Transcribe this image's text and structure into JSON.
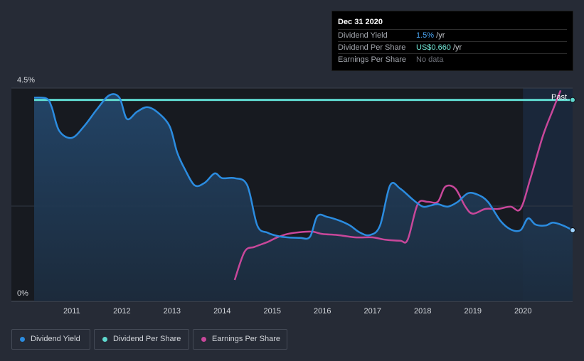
{
  "tooltip": {
    "date": "Dec 31 2020",
    "rows": [
      {
        "label": "Dividend Yield",
        "value": "1.5%",
        "unit": " /yr"
      },
      {
        "label": "Dividend Per Share",
        "value": "US$0.660",
        "unit": " /yr"
      },
      {
        "label": "Earnings Per Share",
        "value": "No data",
        "unit": ""
      }
    ]
  },
  "legend": [
    {
      "label": "Dividend Yield",
      "color": "#2b8ce0"
    },
    {
      "label": "Dividend Per Share",
      "color": "#5fd9cf"
    },
    {
      "label": "Earnings Per Share",
      "color": "#c8479a"
    }
  ],
  "chart_data": {
    "type": "line",
    "title": "",
    "xlabel": "",
    "ylabel": "",
    "xlim": [
      2010.25,
      2020.99
    ],
    "ylim": [
      0,
      4.5
    ],
    "y_tick_labels": [
      "4.5%",
      "0%"
    ],
    "x_ticks": [
      2011,
      2012,
      2013,
      2014,
      2015,
      2016,
      2017,
      2018,
      2019,
      2020
    ],
    "past_label": "Past",
    "past_region_start": 2020.0,
    "series": [
      {
        "name": "Dividend Yield",
        "color": "#2b8ce0",
        "x": [
          2010.25,
          2010.5,
          2010.6,
          2010.75,
          2011.0,
          2011.25,
          2011.5,
          2011.75,
          2011.95,
          2012.1,
          2012.3,
          2012.5,
          2012.7,
          2012.95,
          2013.1,
          2013.25,
          2013.45,
          2013.65,
          2013.85,
          2014.0,
          2014.25,
          2014.5,
          2014.7,
          2014.9,
          2015.1,
          2015.3,
          2015.55,
          2015.75,
          2015.9,
          2016.1,
          2016.35,
          2016.55,
          2016.75,
          2016.95,
          2017.15,
          2017.35,
          2017.55,
          2017.8,
          2018.0,
          2018.15,
          2018.3,
          2018.5,
          2018.7,
          2018.9,
          2019.1,
          2019.3,
          2019.55,
          2019.75,
          2019.95,
          2020.1,
          2020.25,
          2020.45,
          2020.6,
          2020.8,
          2020.99
        ],
        "values": [
          4.3,
          4.28,
          4.1,
          3.6,
          3.45,
          3.7,
          4.05,
          4.35,
          4.3,
          3.85,
          4.0,
          4.1,
          4.0,
          3.7,
          3.15,
          2.8,
          2.45,
          2.5,
          2.7,
          2.6,
          2.6,
          2.45,
          1.6,
          1.45,
          1.38,
          1.35,
          1.34,
          1.36,
          1.8,
          1.78,
          1.7,
          1.6,
          1.45,
          1.4,
          1.6,
          2.45,
          2.38,
          2.15,
          2.0,
          2.02,
          2.05,
          2.0,
          2.1,
          2.28,
          2.25,
          2.1,
          1.7,
          1.52,
          1.5,
          1.75,
          1.62,
          1.6,
          1.66,
          1.6,
          1.5
        ]
      },
      {
        "name": "Dividend Per Share",
        "color": "#5fd9cf",
        "x": [
          2010.25,
          2020.99
        ],
        "values": [
          4.25,
          4.25
        ]
      },
      {
        "name": "Earnings Per Share",
        "color": "#c8479a",
        "x": [
          2014.25,
          2014.45,
          2014.65,
          2014.9,
          2015.1,
          2015.3,
          2015.55,
          2015.8,
          2016.0,
          2016.3,
          2016.65,
          2017.0,
          2017.25,
          2017.55,
          2017.7,
          2017.9,
          2018.1,
          2018.3,
          2018.45,
          2018.65,
          2018.85,
          2019.0,
          2019.25,
          2019.5,
          2019.75,
          2019.95,
          2020.15,
          2020.4,
          2020.6,
          2020.75
        ],
        "values": [
          0.45,
          1.05,
          1.15,
          1.25,
          1.35,
          1.42,
          1.46,
          1.47,
          1.42,
          1.4,
          1.35,
          1.35,
          1.3,
          1.28,
          1.3,
          2.05,
          2.1,
          2.1,
          2.42,
          2.38,
          2.0,
          1.85,
          1.95,
          1.95,
          2.0,
          1.95,
          2.6,
          3.5,
          4.05,
          4.45
        ]
      }
    ]
  }
}
